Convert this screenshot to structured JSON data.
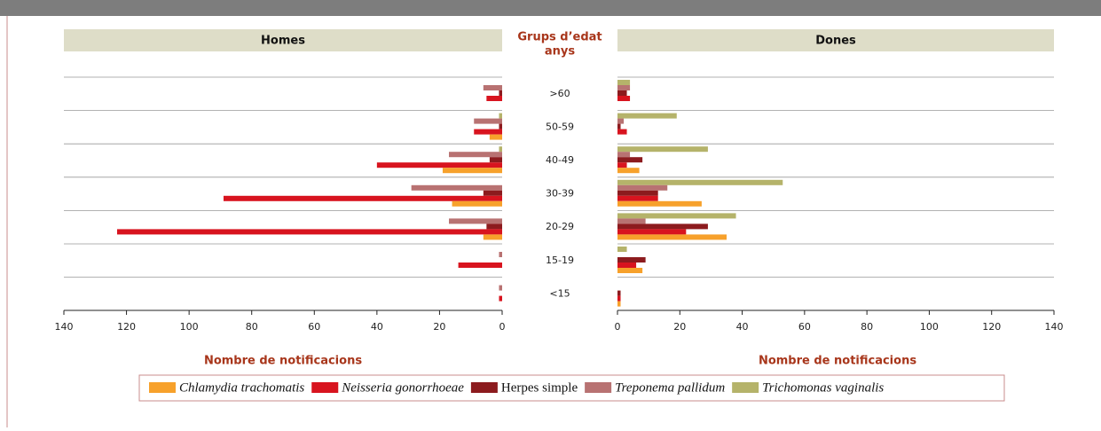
{
  "chart_data": {
    "type": "pyramid",
    "category_label": [
      "Grups d’edat",
      "anys"
    ],
    "categories": [
      ">60",
      "50-59",
      "40-49",
      "30-39",
      "20-29",
      "15-19",
      "<15"
    ],
    "series": [
      {
        "name": "Trichomonas vaginalis",
        "color": "#b5b36a",
        "italic": true
      },
      {
        "name": "Treponema pallidum",
        "color": "#b87272",
        "italic": true
      },
      {
        "name": "Herpes simple",
        "color": "#8c1b1e",
        "italic": false
      },
      {
        "name": "Neisseria gonorrhoeae",
        "color": "#d8141f",
        "italic": true
      },
      {
        "name": "Chlamydia trachomatis",
        "color": "#f7a12b",
        "italic": true
      }
    ],
    "legend_order": [
      4,
      3,
      2,
      1,
      0
    ],
    "panels": [
      {
        "title": "Homes",
        "xlabel": "Nombre de notificacions",
        "xlim": [
          0,
          140
        ],
        "reversed": true,
        "xticks": [
          0,
          20,
          40,
          60,
          80,
          100,
          120,
          140
        ],
        "series": [
          {
            "values": [
              0,
              1,
              1,
              0,
              0,
              0,
              0
            ]
          },
          {
            "values": [
              6,
              9,
              17,
              29,
              17,
              1,
              1
            ]
          },
          {
            "values": [
              1,
              1,
              4,
              6,
              5,
              0,
              0
            ]
          },
          {
            "values": [
              5,
              9,
              40,
              89,
              123,
              14,
              1
            ]
          },
          {
            "values": [
              0,
              4,
              19,
              16,
              6,
              0,
              0
            ]
          }
        ]
      },
      {
        "title": "Dones",
        "xlabel": "Nombre de notificacions",
        "xlim": [
          0,
          140
        ],
        "reversed": false,
        "xticks": [
          0,
          20,
          40,
          60,
          80,
          100,
          120,
          140
        ],
        "series": [
          {
            "values": [
              4,
              19,
              29,
              53,
              38,
              3,
              0
            ]
          },
          {
            "values": [
              4,
              2,
              4,
              16,
              9,
              0,
              0
            ]
          },
          {
            "values": [
              3,
              1,
              8,
              13,
              29,
              9,
              1
            ]
          },
          {
            "values": [
              4,
              3,
              3,
              13,
              22,
              6,
              1
            ]
          },
          {
            "values": [
              0,
              0,
              7,
              27,
              35,
              8,
              1
            ]
          }
        ]
      }
    ]
  }
}
